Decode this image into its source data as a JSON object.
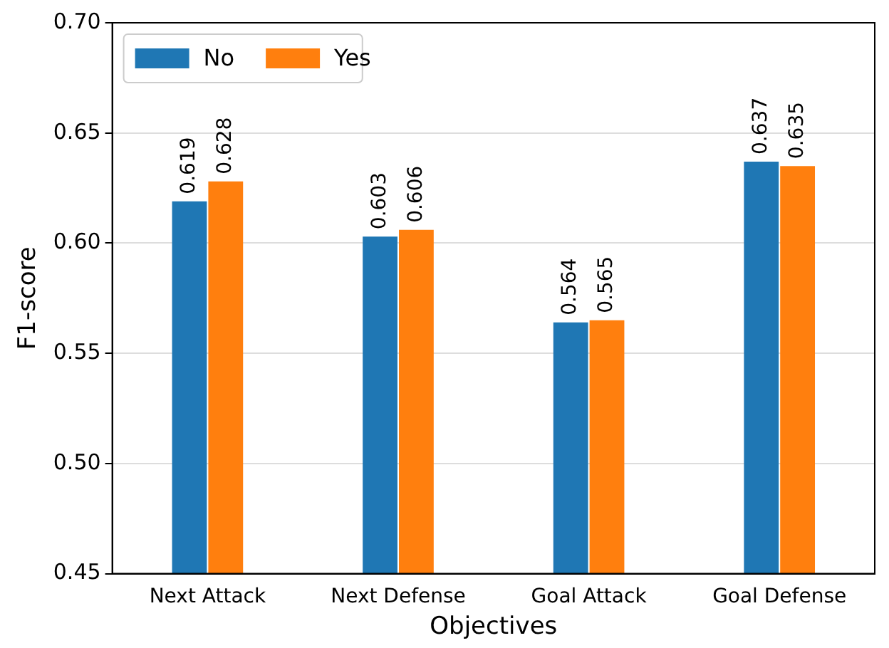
{
  "chart_data": {
    "type": "bar",
    "xlabel": "Objectives",
    "ylabel": "F1-score",
    "categories": [
      "Next Attack",
      "Next Defense",
      "Goal Attack",
      "Goal Defense"
    ],
    "series": [
      {
        "name": "No",
        "color": "#1f77b4",
        "values": [
          0.619,
          0.603,
          0.564,
          0.637
        ]
      },
      {
        "name": "Yes",
        "color": "#ff7f0e",
        "values": [
          0.628,
          0.606,
          0.565,
          0.635
        ]
      }
    ],
    "ylim": [
      0.45,
      0.7
    ],
    "yticks": [
      0.45,
      {
        "value": 0.5,
        "label": "0.50"
      },
      0.55,
      {
        "value": 0.6,
        "label": "0.60"
      },
      0.65,
      {
        "value": 0.7,
        "label": "0.70"
      }
    ],
    "grid": "y",
    "legend": "top left",
    "data_labels": true
  }
}
